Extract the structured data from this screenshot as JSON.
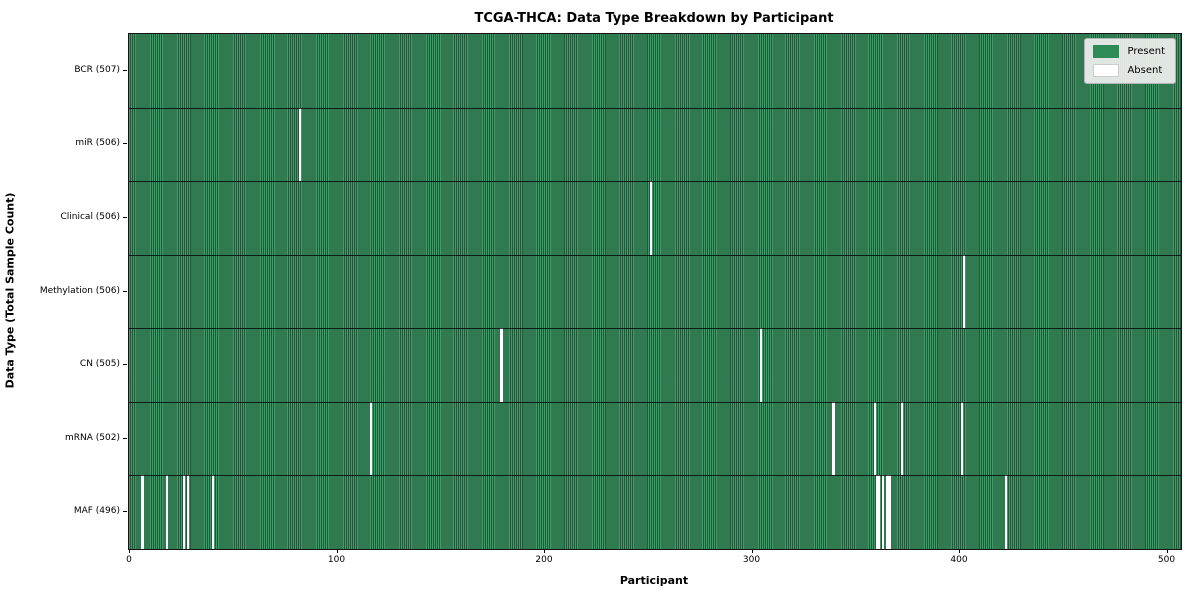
{
  "title": "TCGA-THCA: Data Type Breakdown by Participant",
  "xlabel": "Participant",
  "ylabel": "Data Type (Total Sample Count)",
  "colors": {
    "present": "#2e8b57",
    "absent": "#ffffff",
    "legend_background": "#f0f0f0",
    "axes_edge": "#141414"
  },
  "legend": {
    "present_label": "Present",
    "absent_label": "Absent"
  },
  "chart_data": {
    "type": "heatmap",
    "title": "TCGA-THCA: Data Type Breakdown by Participant",
    "xlabel": "Participant",
    "ylabel": "Data Type (Total Sample Count)",
    "legend_position": "upper right",
    "grid": "row separators only",
    "total_participants": 507,
    "x_axis": {
      "min": 0,
      "max": 507,
      "ticks": [
        0,
        100,
        200,
        300,
        400,
        500
      ],
      "tick_labels": [
        "0",
        "100",
        "200",
        "300",
        "400",
        "500"
      ]
    },
    "cell_values": "binary presence (1=Present green, 0=Absent white)",
    "rows": [
      {
        "label": "BCR (507)",
        "data_type": "BCR",
        "sample_count": 507,
        "absent_participants": []
      },
      {
        "label": "miR (506)",
        "data_type": "miR",
        "sample_count": 506,
        "absent_participants": [
          82
        ]
      },
      {
        "label": "Clinical (506)",
        "data_type": "Clinical",
        "sample_count": 506,
        "absent_participants": [
          251
        ]
      },
      {
        "label": "Methylation (506)",
        "data_type": "Methylation",
        "sample_count": 506,
        "absent_participants": [
          402
        ]
      },
      {
        "label": "CN (505)",
        "data_type": "CN",
        "sample_count": 505,
        "absent_participants": [
          179,
          304
        ]
      },
      {
        "label": "mRNA (502)",
        "data_type": "mRNA",
        "sample_count": 502,
        "absent_participants": [
          116,
          339,
          359,
          372,
          401
        ]
      },
      {
        "label": "MAF (496)",
        "data_type": "MAF",
        "sample_count": 496,
        "absent_participants": [
          6,
          18,
          26,
          28,
          40,
          360,
          361,
          363,
          365,
          366,
          422
        ]
      }
    ],
    "legend_entries": [
      {
        "label": "Present",
        "color": "#2e8b57"
      },
      {
        "label": "Absent",
        "color": "#ffffff"
      }
    ]
  }
}
